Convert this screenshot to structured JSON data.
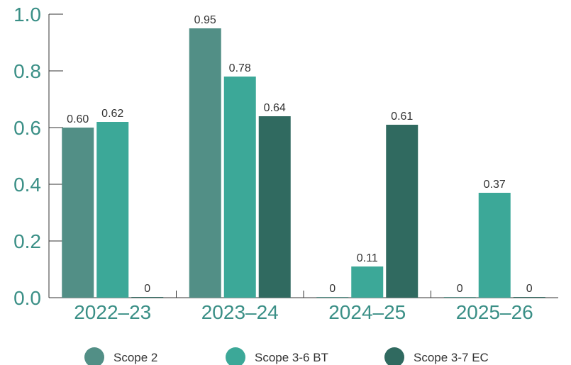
{
  "chart_data": {
    "type": "bar",
    "categories": [
      "2022–23",
      "2023–24",
      "2024–25",
      "2025–26"
    ],
    "series": [
      {
        "name": "Scope 2",
        "values": [
          0.6,
          0.95,
          0,
          0
        ],
        "labels": [
          "0.60",
          "0.95",
          "0",
          "0"
        ],
        "color": "#528f86"
      },
      {
        "name": "Scope 3-6 BT",
        "values": [
          0.62,
          0.78,
          0.11,
          0.37
        ],
        "labels": [
          "0.62",
          "0.78",
          "0.11",
          "0.37"
        ],
        "color": "#3ca898"
      },
      {
        "name": "Scope 3-7 EC",
        "values": [
          0,
          0.64,
          0.61,
          0
        ],
        "labels": [
          "0",
          "0.64",
          "0.61",
          "0"
        ],
        "color": "#306a60"
      }
    ],
    "ylim": [
      0,
      1.0
    ],
    "yticks": [
      "0.0",
      "0.2",
      "0.4",
      "0.6",
      "0.8",
      "1.0"
    ],
    "legend_position": "bottom",
    "grid": false
  }
}
